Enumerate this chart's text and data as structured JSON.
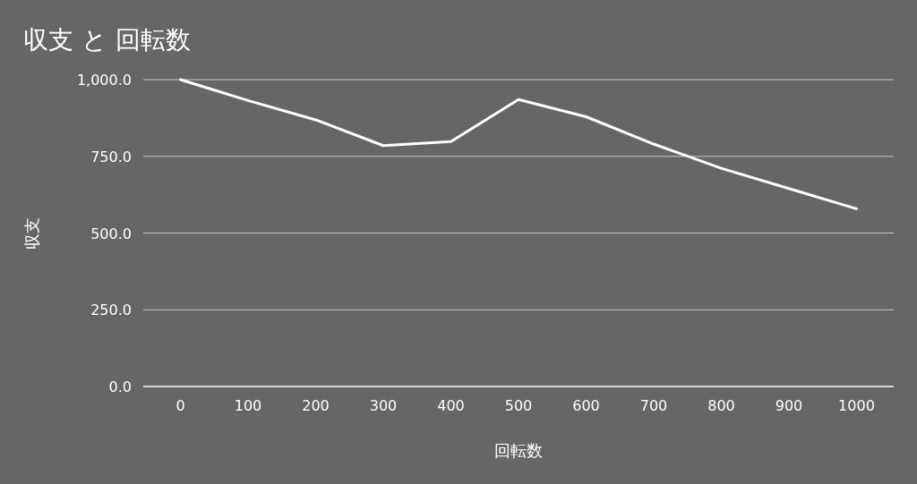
{
  "chart_data": {
    "type": "line",
    "title": "収支 と 回転数",
    "xlabel": "回転数",
    "ylabel": "収支",
    "x": [
      0,
      100,
      200,
      300,
      400,
      500,
      600,
      700,
      800,
      900,
      1000
    ],
    "xticks": [
      0,
      100,
      200,
      300,
      400,
      500,
      600,
      700,
      800,
      900,
      1000
    ],
    "xlim": [
      -55,
      1055
    ],
    "series": [
      {
        "color": "#ffffff",
        "values": [
          1000,
          932,
          869,
          785,
          798,
          935,
          879,
          790,
          711,
          645,
          579
        ]
      }
    ],
    "ylim": [
      0,
      1000
    ],
    "yticks": [
      {
        "value": 0,
        "label": "0.0"
      },
      {
        "value": 250,
        "label": "250.0"
      },
      {
        "value": 500,
        "label": "500.0"
      },
      {
        "value": 750,
        "label": "750.0"
      },
      {
        "value": 1000,
        "label": "1,000.0"
      }
    ],
    "grid": "y",
    "marker": "none",
    "line_style": "solid"
  }
}
